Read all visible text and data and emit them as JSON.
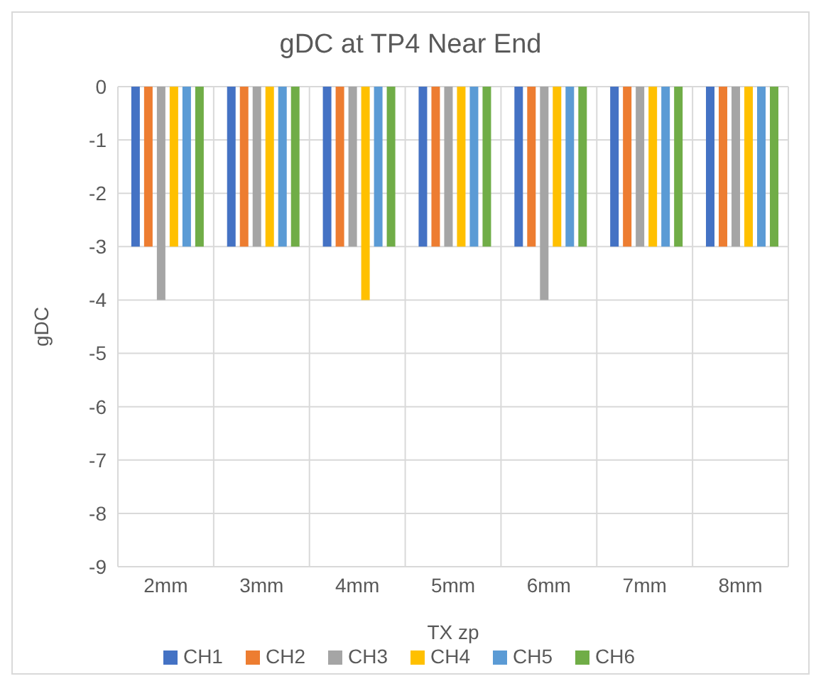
{
  "chart_data": {
    "type": "bar",
    "title": "gDC at TP4 Near End",
    "xlabel": "TX zp",
    "ylabel": "gDC",
    "categories": [
      "2mm",
      "3mm",
      "4mm",
      "5mm",
      "6mm",
      "7mm",
      "8mm"
    ],
    "series": [
      {
        "name": "CH1",
        "color": "#4472c4",
        "values": [
          -3,
          -3,
          -3,
          -3,
          -3,
          -3,
          -3
        ]
      },
      {
        "name": "CH2",
        "color": "#ed7d31",
        "values": [
          -3,
          -3,
          -3,
          -3,
          -3,
          -3,
          -3
        ]
      },
      {
        "name": "CH3",
        "color": "#a5a5a5",
        "values": [
          -4,
          -3,
          -3,
          -3,
          -4,
          -3,
          -3
        ]
      },
      {
        "name": "CH4",
        "color": "#ffc000",
        "values": [
          -3,
          -3,
          -4,
          -3,
          -3,
          -3,
          -3
        ]
      },
      {
        "name": "CH5",
        "color": "#5b9bd5",
        "values": [
          -3,
          -3,
          -3,
          -3,
          -3,
          -3,
          -3
        ]
      },
      {
        "name": "CH6",
        "color": "#70ad47",
        "values": [
          -3,
          -3,
          -3,
          -3,
          -3,
          -3,
          -3
        ]
      }
    ],
    "ylim": [
      -9,
      0
    ],
    "yticks": [
      0,
      -1,
      -2,
      -3,
      -4,
      -5,
      -6,
      -7,
      -8,
      -9
    ],
    "grid": true,
    "legend": "bottom"
  }
}
